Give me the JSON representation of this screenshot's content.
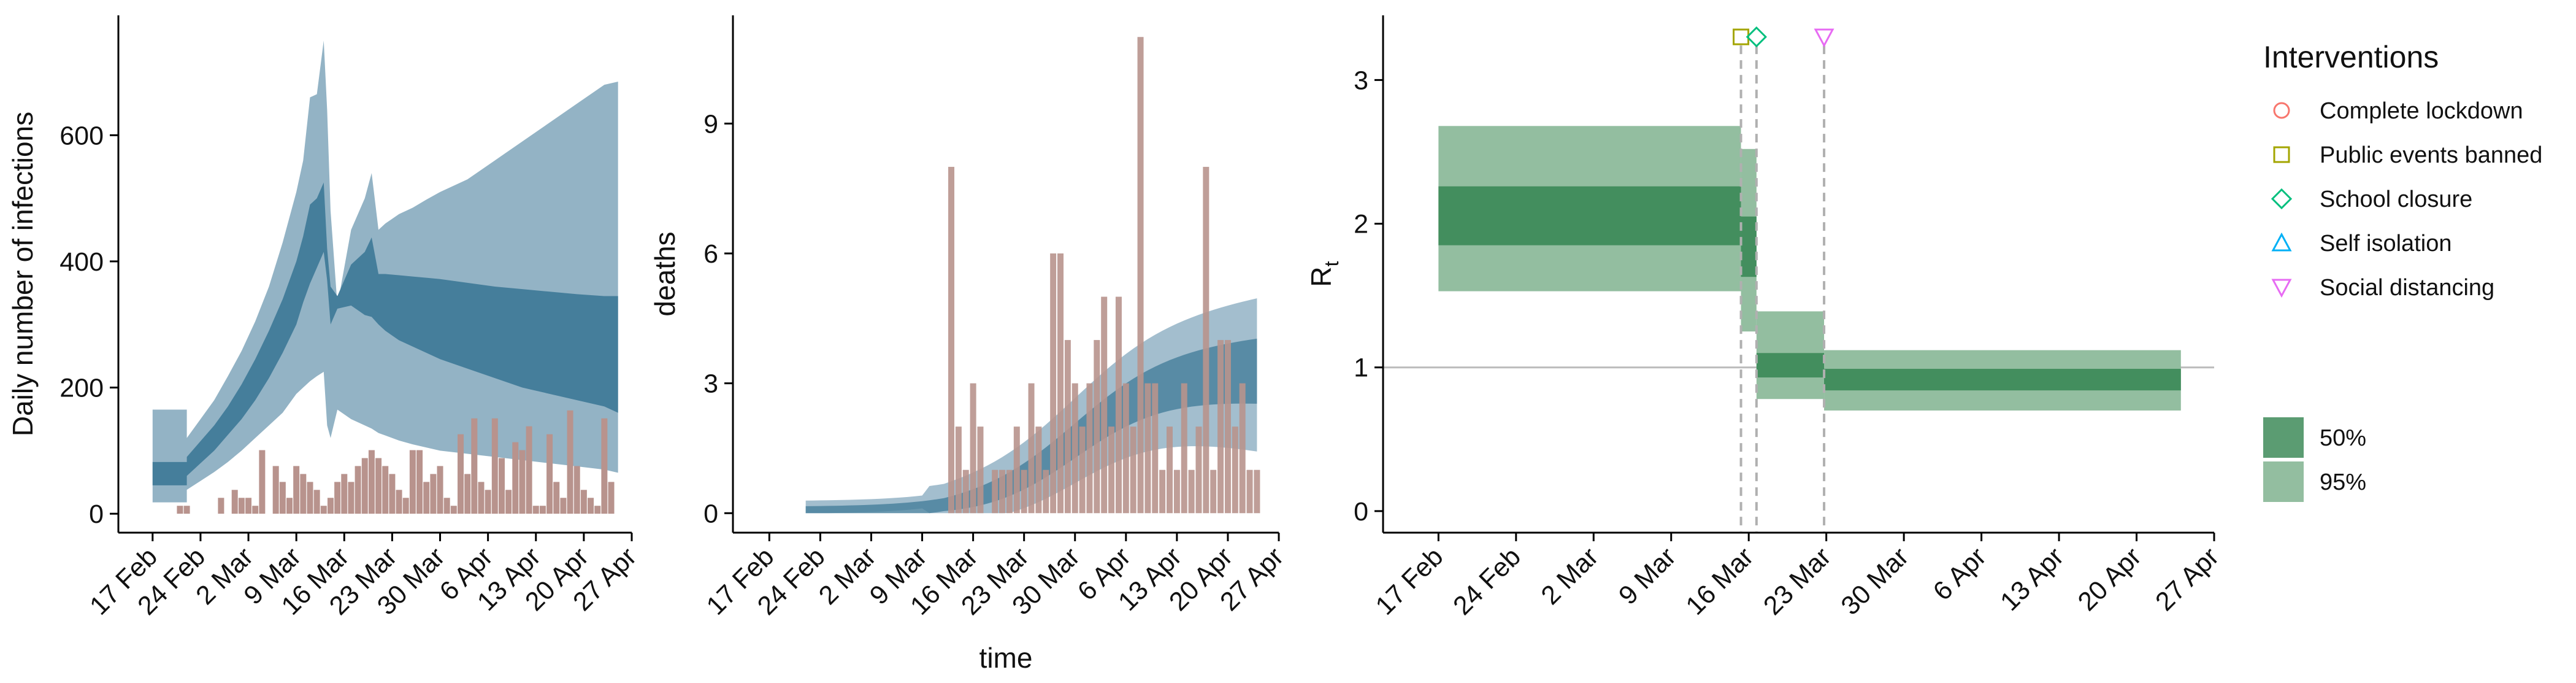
{
  "chart_data": [
    {
      "type": "area",
      "ylabel": "Daily number of infections",
      "xlabel": "",
      "x_start": "2020-02-13",
      "x_ticks": [
        "17 Feb",
        "24 Feb",
        "2 Mar",
        "9 Mar",
        "16 Mar",
        "23 Mar",
        "30 Mar",
        "6 Apr",
        "13 Apr",
        "20 Apr",
        "27 Apr"
      ],
      "yticks": [
        0,
        200,
        400,
        600
      ],
      "ylim": [
        -30,
        790
      ],
      "xlim_days": [
        -1,
        74
      ],
      "colors": {
        "band95": "#93b3c5",
        "band50": "#457e9b",
        "bars": "#b8938d"
      },
      "band95": {
        "x": [
          4,
          9,
          9,
          11,
          13,
          15,
          17,
          19,
          21,
          23,
          25,
          26,
          27,
          28,
          29,
          29.5,
          30,
          31,
          33,
          35,
          36,
          37,
          38,
          40,
          42,
          44,
          46,
          50,
          54,
          58,
          62,
          66,
          70,
          72
        ],
        "low": [
          18,
          18,
          38,
          52,
          66,
          82,
          100,
          120,
          140,
          160,
          190,
          200,
          210,
          218,
          225,
          140,
          120,
          165,
          150,
          140,
          135,
          128,
          124,
          116,
          110,
          105,
          100,
          95,
          90,
          85,
          80,
          75,
          70,
          65
        ],
        "high": [
          165,
          165,
          120,
          150,
          180,
          218,
          258,
          305,
          360,
          430,
          510,
          560,
          660,
          665,
          750,
          640,
          480,
          330,
          450,
          500,
          540,
          450,
          460,
          475,
          485,
          498,
          510,
          530,
          560,
          590,
          620,
          650,
          680,
          685
        ]
      },
      "band50": {
        "x": [
          4,
          9,
          9,
          11,
          13,
          15,
          17,
          19,
          21,
          23,
          25,
          26,
          27,
          28,
          29,
          29.5,
          30,
          31,
          33,
          35,
          36,
          37,
          38,
          40,
          42,
          44,
          46,
          50,
          54,
          58,
          62,
          66,
          70,
          72
        ],
        "low": [
          45,
          45,
          60,
          80,
          100,
          125,
          150,
          180,
          215,
          255,
          300,
          335,
          365,
          390,
          415,
          370,
          300,
          325,
          330,
          315,
          312,
          300,
          290,
          275,
          265,
          255,
          245,
          230,
          215,
          200,
          190,
          180,
          170,
          160
        ],
        "high": [
          82,
          82,
          90,
          115,
          140,
          170,
          205,
          245,
          290,
          340,
          400,
          440,
          490,
          500,
          525,
          420,
          360,
          345,
          395,
          415,
          438,
          380,
          380,
          378,
          376,
          374,
          372,
          366,
          360,
          356,
          352,
          348,
          345,
          345
        ]
      },
      "bars": {
        "x": [
          8,
          9,
          14,
          16,
          17,
          18,
          19,
          20,
          22,
          23,
          24,
          25,
          26,
          27,
          28,
          29,
          30,
          31,
          32,
          33,
          34,
          35,
          36,
          37,
          38,
          39,
          40,
          41,
          42,
          43,
          44,
          45,
          46,
          47,
          48,
          49,
          50,
          51,
          52,
          53,
          54,
          55,
          56,
          57,
          58,
          59,
          60,
          61,
          62,
          63,
          64,
          65,
          66,
          67,
          68,
          69,
          70,
          71
        ],
        "values": [
          1,
          1,
          2,
          3,
          2,
          2,
          1,
          8,
          6,
          4,
          2,
          6,
          5,
          4,
          3,
          1,
          2,
          4,
          5,
          4,
          6,
          7,
          8,
          7,
          6,
          5,
          3,
          2,
          8,
          8,
          4,
          5,
          6,
          2,
          1,
          10,
          5,
          12,
          4,
          3,
          12,
          7,
          3,
          9,
          8,
          11,
          1,
          1,
          10,
          4,
          2,
          13,
          6,
          3,
          2,
          1,
          12,
          4
        ]
      }
    },
    {
      "type": "area",
      "ylabel": "deaths",
      "xlabel": "time",
      "x_ticks": [
        "17 Feb",
        "24 Feb",
        "2 Mar",
        "9 Mar",
        "16 Mar",
        "23 Mar",
        "30 Mar",
        "6 Apr",
        "13 Apr",
        "20 Apr",
        "27 Apr"
      ],
      "yticks": [
        0,
        3,
        6,
        9
      ],
      "ylim": [
        -0.45,
        11.5
      ],
      "xlim_days": [
        -1,
        74
      ],
      "colors": {
        "band95": "#93b3c5",
        "band50": "#457e9b",
        "bars": "#b8938d"
      },
      "bars": {
        "x": [
          29,
          30,
          31,
          32,
          33,
          35,
          36,
          37,
          38,
          39,
          40,
          41,
          42,
          43,
          44,
          45,
          46,
          47,
          48,
          49,
          50,
          51,
          52,
          53,
          54,
          55,
          56,
          57,
          58,
          59,
          60,
          61,
          62,
          63,
          64,
          65,
          66,
          67,
          68,
          69,
          70,
          71
        ],
        "values": [
          8,
          2,
          1,
          3,
          2,
          1,
          1,
          1,
          2,
          1,
          3,
          2,
          1,
          6,
          6,
          4,
          3,
          2,
          3,
          4,
          5,
          2,
          5,
          3,
          2,
          11,
          3,
          3,
          1,
          2,
          1,
          3,
          1,
          2,
          8,
          1,
          4,
          4,
          2,
          3,
          1,
          1
        ]
      }
    },
    {
      "type": "area",
      "ylabel": "Rt",
      "ylabel_main": "R",
      "ylabel_sub": "t",
      "xlabel": "",
      "x_ticks": [
        "17 Feb",
        "24 Feb",
        "2 Mar",
        "9 Mar",
        "16 Mar",
        "23 Mar",
        "30 Mar",
        "6 Apr",
        "13 Apr",
        "20 Apr",
        "27 Apr"
      ],
      "yticks": [
        0,
        1,
        2,
        3
      ],
      "ylim": [
        -0.15,
        3.45
      ],
      "xlim_days": [
        -1,
        74
      ],
      "reference_line": 1,
      "colors": {
        "band95": "#93bea0",
        "band50": "#438e5e",
        "refline": "#bbbbbb",
        "vlines": "#b0b0b0"
      },
      "segments": [
        {
          "x0": 4,
          "x1": 31.3,
          "low95": 1.53,
          "high95": 2.68,
          "low50": 1.85,
          "high50": 2.26
        },
        {
          "x0": 31.3,
          "x1": 32.7,
          "low95": 1.25,
          "high95": 2.52,
          "low50": 1.63,
          "high50": 2.05
        },
        {
          "x0": 32.7,
          "x1": 38.8,
          "low95": 0.78,
          "high95": 1.39,
          "low50": 0.93,
          "high50": 1.1
        },
        {
          "x0": 38.8,
          "x1": 71,
          "low95": 0.7,
          "high95": 1.12,
          "low50": 0.84,
          "high50": 0.99
        }
      ],
      "interventions": [
        {
          "name": "Public events banned",
          "day": 31.3,
          "shape": "square",
          "color": "#a3a500"
        },
        {
          "name": "School closure",
          "day": 32.7,
          "shape": "diamond",
          "color": "#00bf7d"
        },
        {
          "name": "Social distancing",
          "day": 38.8,
          "shape": "triangle-down",
          "color": "#e76bf3"
        }
      ]
    }
  ],
  "legend": {
    "interventions_title": "Interventions",
    "interventions": [
      {
        "label": "Complete lockdown",
        "shape": "circle",
        "color": "#f8766d"
      },
      {
        "label": "Public events banned",
        "shape": "square",
        "color": "#a3a500"
      },
      {
        "label": "School closure",
        "shape": "diamond",
        "color": "#00bf7d"
      },
      {
        "label": "Self isolation",
        "shape": "triangle-up",
        "color": "#00b0f6"
      },
      {
        "label": "Social distancing",
        "shape": "triangle-down",
        "color": "#e76bf3"
      }
    ],
    "bands": [
      {
        "label": "50%",
        "color": "#5b9c72"
      },
      {
        "label": "95%",
        "color": "#93bea0"
      }
    ]
  }
}
